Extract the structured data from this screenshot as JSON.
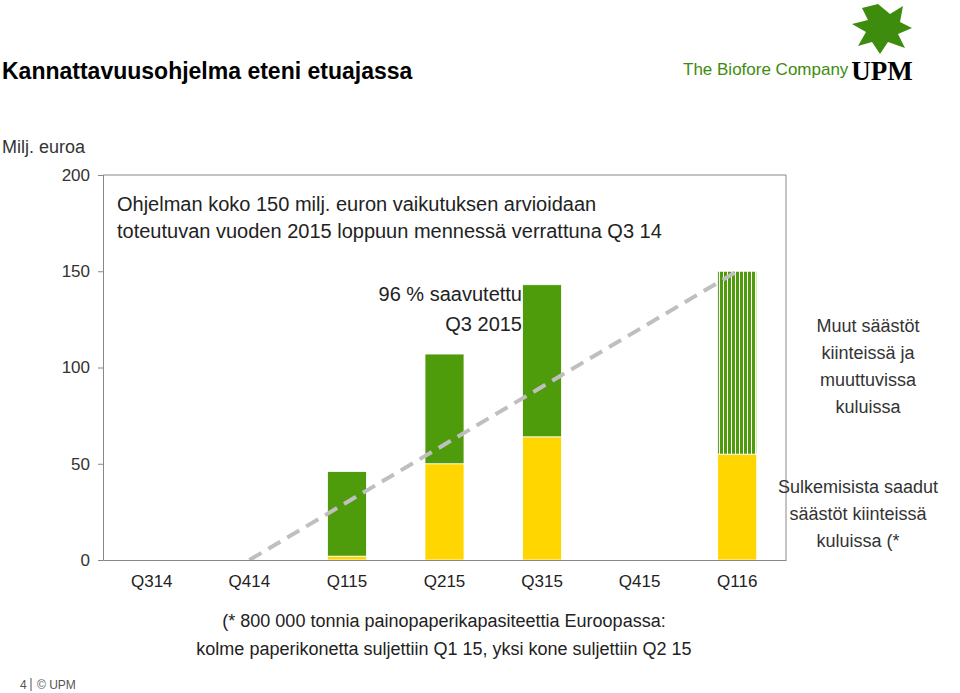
{
  "chart_data": {
    "type": "bar",
    "title": "Kannattavuusohjelma eteni etuajassa",
    "y_label": "Milj. euroa",
    "stacked": true,
    "grid": false,
    "categories": [
      "Q314",
      "Q414",
      "Q115",
      "Q215",
      "Q315",
      "Q415",
      "Q116"
    ],
    "series": [
      {
        "name": "Sulkemisista saadut säästöt kiinteissä kuluissa (*",
        "color": "#ffd600",
        "values": [
          null,
          null,
          2,
          50,
          64,
          null,
          55
        ]
      },
      {
        "name": "Muut säästöt kiinteissä ja muuttuvissa kuluissa",
        "color": "#4e9b0c",
        "values": [
          null,
          null,
          44,
          57,
          79,
          null,
          95
        ]
      },
      {
        "type": "line",
        "line_style": "dashed",
        "color": "#bfbfbf",
        "values": [
          null,
          0,
          30,
          60,
          90,
          120,
          150
        ]
      }
    ],
    "ylim": [
      0,
      200
    ],
    "yticks": [
      0,
      50,
      100,
      150,
      200
    ],
    "annotations": [
      {
        "text": [
          "Ohjelman koko 150 milj. euron vaikutuksen arvioidaan",
          "toteutuvan vuoden 2015 loppuun mennessä verrattuna Q3 14"
        ]
      },
      {
        "text": [
          "96 % saavutettu",
          "Q3 2015"
        ]
      }
    ],
    "footnote": [
      "(* 800 000 tonnia painopaperikapasiteettia Euroopassa:",
      "kolme paperikonetta suljettiin Q1 15, yksi kone suljettiin Q2 15"
    ],
    "logo": {
      "tagline": "The Biofore Company",
      "brand": "UPM"
    },
    "footer": {
      "page": "4",
      "copyright": "© UPM"
    }
  }
}
